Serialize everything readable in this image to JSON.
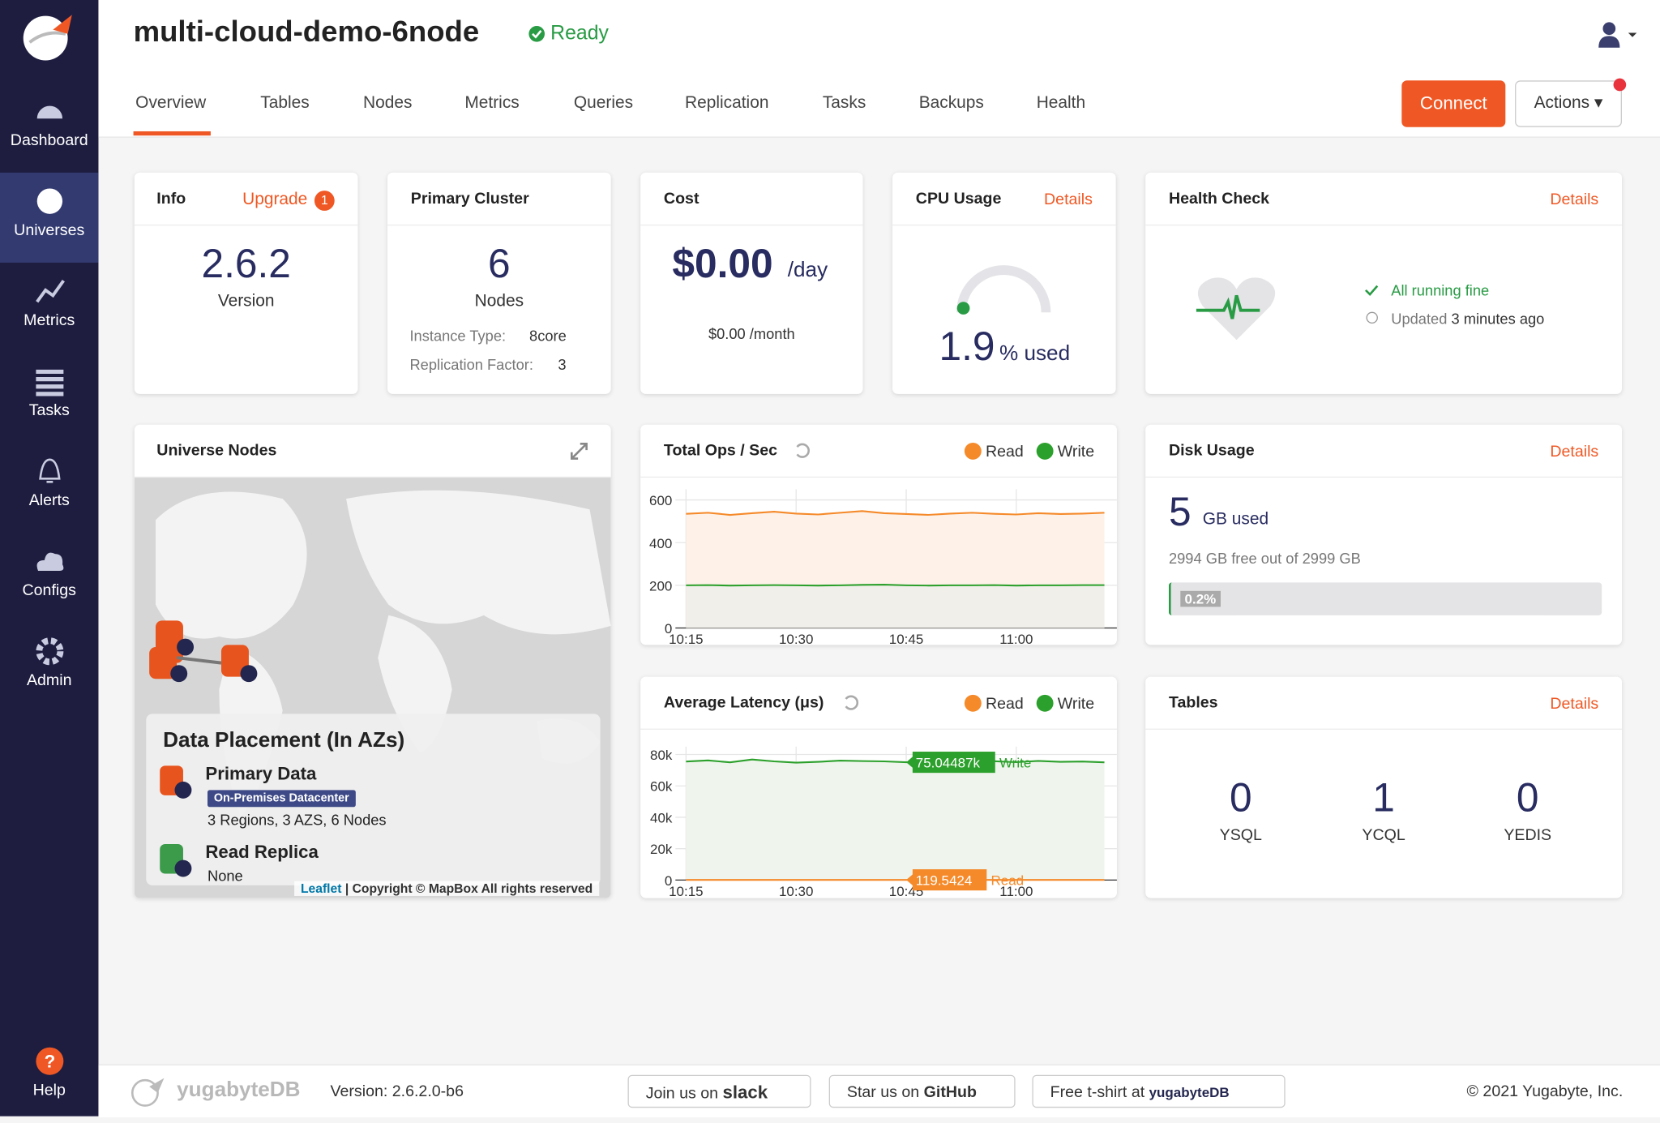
{
  "sidebar": {
    "items": [
      "Dashboard",
      "Universes",
      "Metrics",
      "Tasks",
      "Alerts",
      "Configs",
      "Admin"
    ],
    "help": "Help"
  },
  "header": {
    "title": "multi-cloud-demo-6node",
    "status": "Ready",
    "tabs": [
      "Overview",
      "Tables",
      "Nodes",
      "Metrics",
      "Queries",
      "Replication",
      "Tasks",
      "Backups",
      "Health"
    ],
    "connect": "Connect",
    "actions": "Actions"
  },
  "cards": {
    "info": {
      "title": "Info",
      "upgrade": "Upgrade",
      "upgrade_count": "1",
      "version": "2.6.2",
      "version_label": "Version"
    },
    "primary_cluster": {
      "title": "Primary Cluster",
      "nodes": "6",
      "nodes_label": "Nodes",
      "instance_type_label": "Instance Type:",
      "instance_type": "8core",
      "rf_label": "Replication Factor:",
      "rf": "3"
    },
    "cost": {
      "title": "Cost",
      "daily": "$0.00",
      "daily_unit": "/day",
      "monthly": "$0.00 /month"
    },
    "cpu": {
      "title": "CPU Usage",
      "details": "Details",
      "value": "1.9",
      "unit": "% used"
    },
    "health": {
      "title": "Health Check",
      "details": "Details",
      "status": "All running fine",
      "updated_label": "Updated",
      "updated": "3 minutes ago"
    },
    "universe_nodes": {
      "title": "Universe Nodes",
      "placement_title": "Data Placement (In AZs)",
      "primary": "Primary Data",
      "badge": "On-Premises Datacenter",
      "primary_detail": "3 Regions, 3 AZS, 6 Nodes",
      "replica": "Read Replica",
      "replica_detail": "None",
      "attribution_link": "Leaflet",
      "attribution": "| Copyright © MapBox All rights reserved"
    },
    "disk": {
      "title": "Disk Usage",
      "details": "Details",
      "used": "5",
      "used_unit": "GB used",
      "free": "2994 GB free out of 2999 GB",
      "percent": "0.2%"
    },
    "tables": {
      "title": "Tables",
      "details": "Details",
      "counts": [
        {
          "value": "0",
          "label": "YSQL"
        },
        {
          "value": "1",
          "label": "YCQL"
        },
        {
          "value": "0",
          "label": "YEDIS"
        }
      ]
    }
  },
  "chart_data": [
    {
      "type": "line",
      "title": "Total Ops / Sec",
      "categories": [
        "10:15",
        null,
        null,
        null,
        null,
        "10:30",
        null,
        null,
        null,
        null,
        "10:45",
        null,
        null,
        null,
        null,
        "11:00",
        null,
        null,
        null,
        null
      ],
      "ylim": [
        0,
        650
      ],
      "yticks": [
        0,
        200,
        400,
        600
      ],
      "grid": true,
      "series": [
        {
          "name": "Read",
          "color": "#f58a2a",
          "fill": "#fdf1e8",
          "values": [
            535,
            540,
            530,
            538,
            545,
            536,
            532,
            540,
            548,
            538,
            534,
            530,
            536,
            540,
            535,
            532,
            538,
            534,
            536,
            540
          ]
        },
        {
          "name": "Write",
          "color": "#2ca02c",
          "fill": "#f1efe9",
          "values": [
            200,
            201,
            199,
            200,
            201,
            200,
            199,
            200,
            202,
            203,
            200,
            199,
            200,
            200,
            201,
            199,
            200,
            200,
            201,
            201
          ]
        }
      ]
    },
    {
      "type": "line",
      "title": "Average Latency (μs)",
      "categories": [
        "10:15",
        null,
        null,
        null,
        null,
        "10:30",
        null,
        null,
        null,
        null,
        "10:45",
        null,
        null,
        null,
        null,
        "11:00",
        null,
        null,
        null,
        null
      ],
      "ylim": [
        0,
        85000
      ],
      "yticks": [
        0,
        {
          "value": 20000,
          "label": "20k"
        },
        {
          "value": 40000,
          "label": "40k"
        },
        {
          "value": 60000,
          "label": "60k"
        },
        {
          "value": 80000,
          "label": "80k"
        }
      ],
      "grid": true,
      "series": [
        {
          "name": "Write",
          "color": "#2ca02c",
          "fill": "#eff5ec",
          "values": [
            75500,
            76200,
            75000,
            76800,
            75600,
            74800,
            75300,
            76100,
            75800,
            75600,
            75044.87,
            75200,
            76300,
            75400,
            75700,
            75100,
            75900,
            75300,
            75500,
            75000
          ],
          "value_labels": [
            null,
            null,
            null,
            null,
            null,
            null,
            null,
            null,
            null,
            null,
            "75.04487k",
            null,
            null,
            null,
            null,
            null,
            null,
            null,
            null,
            null
          ]
        },
        {
          "name": "Read",
          "color": "#f58a2a",
          "fill": "none",
          "values": [
            120,
            119,
            121,
            119,
            120,
            118,
            119,
            120,
            121,
            119,
            119.5424,
            119,
            118,
            120,
            119,
            121,
            120,
            119,
            120,
            119
          ],
          "value_labels": [
            null,
            null,
            null,
            null,
            null,
            null,
            null,
            null,
            null,
            null,
            "119.5424",
            null,
            null,
            null,
            null,
            null,
            null,
            null,
            null,
            null
          ]
        }
      ]
    }
  ],
  "footer": {
    "brand": "yugabyteDB",
    "version": "Version: 2.6.2.0-b6",
    "slack_prefix": "Join us on",
    "slack": "slack",
    "github_prefix": "Star us on",
    "github": "GitHub",
    "tshirt_prefix": "Free t-shirt at",
    "tshirt_brand": "yugabyteDB",
    "copyright": "© 2021 Yugabyte, Inc."
  }
}
